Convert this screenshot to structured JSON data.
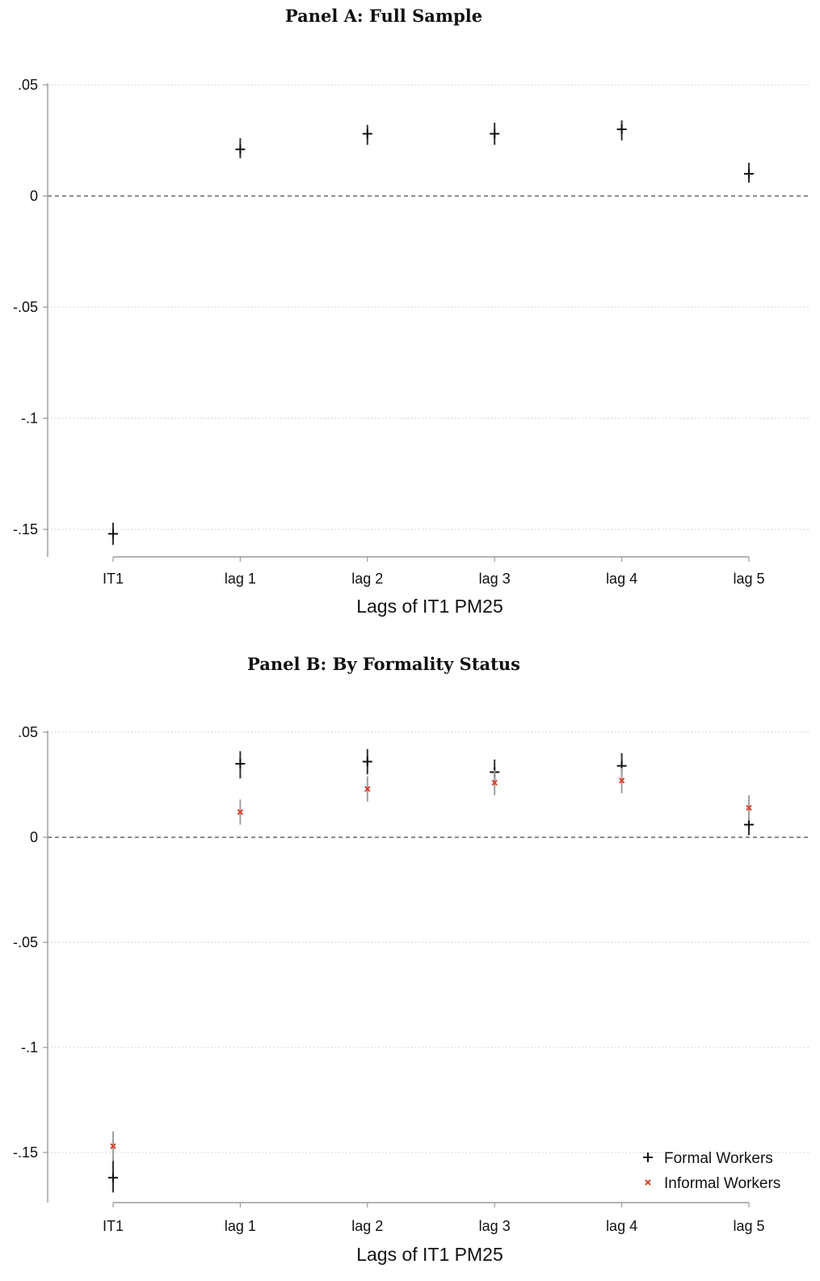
{
  "chart_data": [
    {
      "type": "scatter",
      "title": "Panel A: Full Sample",
      "xlabel": "Lags of IT1 PM25",
      "ylabel": "",
      "categories": [
        "IT1",
        "lag 1",
        "lag 2",
        "lag 3",
        "lag 4",
        "lag 5"
      ],
      "yticks": [
        ".05",
        "0",
        "-.05",
        "-.1",
        "-.15"
      ],
      "ytick_values": [
        0.05,
        0,
        -0.05,
        -0.1,
        -0.15
      ],
      "ylim": [
        -0.162,
        0.05
      ],
      "grid": "dotted horizontal",
      "reference_line": 0,
      "legend": null,
      "series": [
        {
          "name": "",
          "marker": "plus",
          "color": "#111111",
          "ci_color": "#333333",
          "values": [
            -0.152,
            0.021,
            0.028,
            0.028,
            0.03,
            0.01
          ],
          "ci_low": [
            -0.157,
            0.017,
            0.023,
            0.023,
            0.025,
            0.006
          ],
          "ci_high": [
            -0.147,
            0.026,
            0.032,
            0.033,
            0.034,
            0.015
          ]
        }
      ]
    },
    {
      "type": "scatter",
      "title": "Panel B: By Formality Status",
      "xlabel": "Lags of IT1 PM25",
      "ylabel": "",
      "categories": [
        "IT1",
        "lag 1",
        "lag 2",
        "lag 3",
        "lag 4",
        "lag 5"
      ],
      "yticks": [
        ".05",
        "0",
        "-.05",
        "-.1",
        "-.15"
      ],
      "ytick_values": [
        0.05,
        0,
        -0.05,
        -0.1,
        -0.15
      ],
      "ylim": [
        -0.17,
        0.05
      ],
      "grid": "dotted horizontal",
      "reference_line": 0,
      "legend": "bottom-right",
      "series": [
        {
          "name": "Formal Workers",
          "marker": "plus",
          "color": "#111111",
          "ci_color": "#333333",
          "values": [
            -0.162,
            0.035,
            0.036,
            0.031,
            0.034,
            0.006
          ],
          "ci_low": [
            -0.169,
            0.028,
            0.03,
            0.025,
            0.029,
            0.001
          ],
          "ci_high": [
            -0.154,
            0.041,
            0.042,
            0.037,
            0.04,
            0.011
          ]
        },
        {
          "name": "Informal Workers",
          "marker": "x",
          "color": "#e0402a",
          "ci_color": "#a0a0a0",
          "values": [
            -0.147,
            0.012,
            0.023,
            0.026,
            0.027,
            0.014
          ],
          "ci_low": [
            -0.154,
            0.006,
            0.017,
            0.02,
            0.021,
            0.008
          ],
          "ci_high": [
            -0.14,
            0.018,
            0.029,
            0.032,
            0.033,
            0.02
          ]
        }
      ]
    }
  ]
}
